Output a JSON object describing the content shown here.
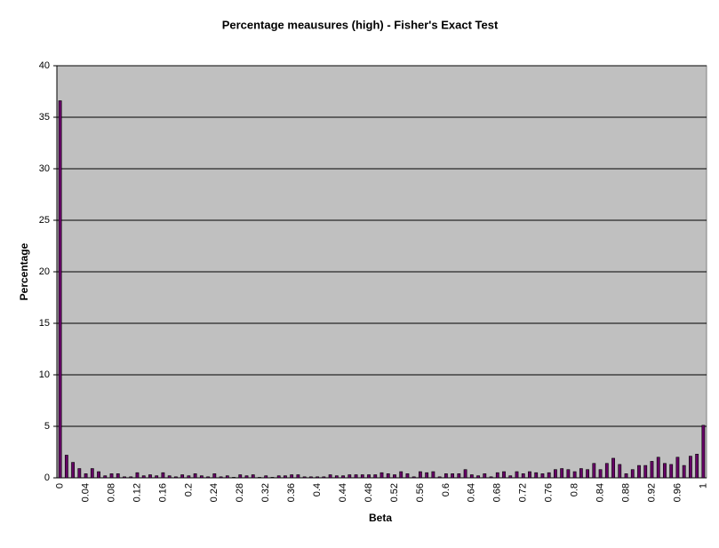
{
  "chart_data": {
    "type": "bar",
    "title": "Percentage meausures (high) - Fisher's Exact Test",
    "x_label": "Beta",
    "y_label": "Percentage",
    "categories": [
      "0",
      null,
      null,
      null,
      "0.04",
      null,
      null,
      null,
      "0.08",
      null,
      null,
      null,
      "0.12",
      null,
      null,
      null,
      "0.16",
      null,
      null,
      null,
      "0.2",
      null,
      null,
      null,
      "0.24",
      null,
      null,
      null,
      "0.28",
      null,
      null,
      null,
      "0.32",
      null,
      null,
      null,
      "0.36",
      null,
      null,
      null,
      "0.4",
      null,
      null,
      null,
      "0.44",
      null,
      null,
      null,
      "0.48",
      null,
      null,
      null,
      "0.52",
      null,
      null,
      null,
      "0.56",
      null,
      null,
      null,
      "0.6",
      null,
      null,
      null,
      "0.64",
      null,
      null,
      null,
      "0.68",
      null,
      null,
      null,
      "0.72",
      null,
      null,
      null,
      "0.76",
      null,
      null,
      null,
      "0.8",
      null,
      null,
      null,
      "0.84",
      null,
      null,
      null,
      "0.88",
      null,
      null,
      null,
      "0.92",
      null,
      null,
      null,
      "0.96",
      null,
      null,
      null,
      "1"
    ],
    "values": [
      36.6,
      2.2,
      1.5,
      0.9,
      0.4,
      0.9,
      0.6,
      0.2,
      0.4,
      0.4,
      0.1,
      0.1,
      0.5,
      0.2,
      0.3,
      0.2,
      0.5,
      0.2,
      0.1,
      0.3,
      0.2,
      0.4,
      0.2,
      0.1,
      0.4,
      0.1,
      0.2,
      0.05,
      0.3,
      0.2,
      0.3,
      0.05,
      0.2,
      0.05,
      0.2,
      0.2,
      0.3,
      0.3,
      0.1,
      0.1,
      0.1,
      0.1,
      0.3,
      0.2,
      0.2,
      0.3,
      0.3,
      0.3,
      0.3,
      0.3,
      0.5,
      0.4,
      0.3,
      0.6,
      0.4,
      0.1,
      0.6,
      0.5,
      0.6,
      0.1,
      0.4,
      0.4,
      0.4,
      0.8,
      0.3,
      0.2,
      0.4,
      0.1,
      0.5,
      0.6,
      0.2,
      0.6,
      0.4,
      0.6,
      0.5,
      0.4,
      0.5,
      0.8,
      0.9,
      0.8,
      0.6,
      0.9,
      0.8,
      1.4,
      0.8,
      1.4,
      1.9,
      1.3,
      0.4,
      0.8,
      1.2,
      1.2,
      1.6,
      2.0,
      1.4,
      1.3,
      2.0,
      1.2,
      2.1,
      2.3,
      5.1
    ],
    "color": "#660066",
    "ylim": [
      0,
      40
    ],
    "yticks": [
      0,
      5,
      10,
      15,
      20,
      25,
      30,
      35,
      40
    ],
    "grid": true
  }
}
